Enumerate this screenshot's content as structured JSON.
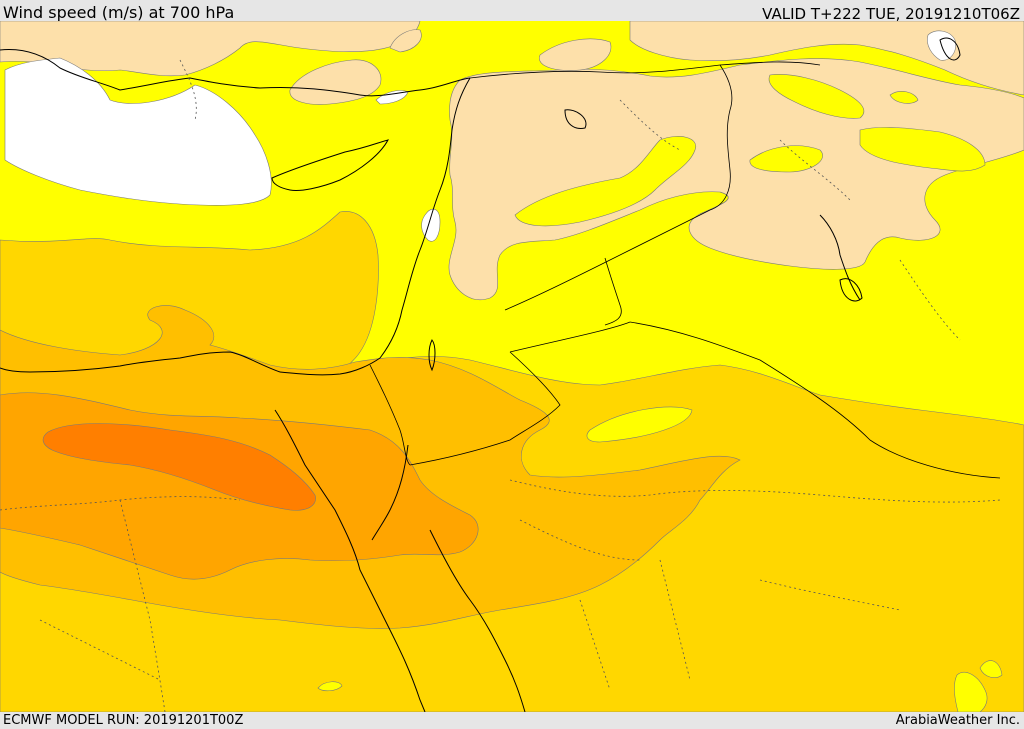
{
  "header": {
    "title": "Wind speed (m/s) at 700 hPa",
    "valid": "VALID T+222 TUE, 20191210T06Z"
  },
  "footer": {
    "model_run": "ECMWF MODEL RUN: 20191201T00Z",
    "credit": "ArabiaWeather Inc."
  },
  "map": {
    "variable": "wind-speed",
    "level": "700 hPa",
    "colors": {
      "calm": "#ffffff",
      "light": "#fde0aa",
      "moderate": "#ffff00",
      "fresh": "#ffd700",
      "strong": "#ffbf00",
      "very_strong": "#ffa500",
      "max": "#ff7f00",
      "borders": "#000000"
    }
  }
}
